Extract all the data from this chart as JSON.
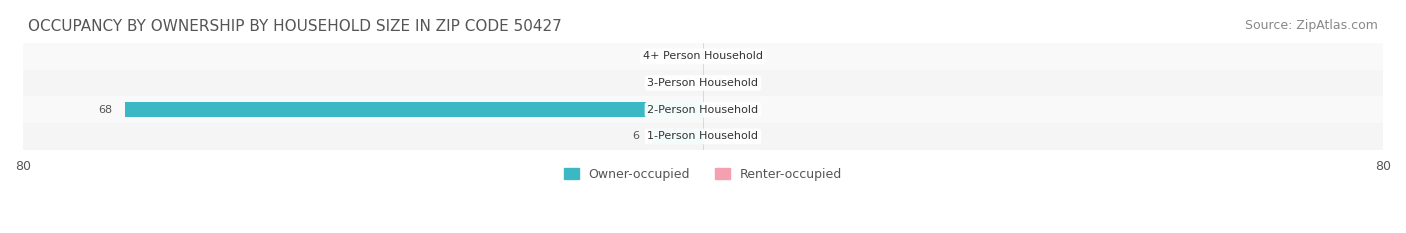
{
  "title": "OCCUPANCY BY OWNERSHIP BY HOUSEHOLD SIZE IN ZIP CODE 50427",
  "source": "Source: ZipAtlas.com",
  "categories": [
    "1-Person Household",
    "2-Person Household",
    "3-Person Household",
    "4+ Person Household"
  ],
  "owner_values": [
    6,
    68,
    0,
    0
  ],
  "renter_values": [
    0,
    0,
    0,
    0
  ],
  "owner_color": "#3BB8C3",
  "renter_color": "#F4A0B0",
  "bar_bg_color": "#EDEDEE",
  "label_bg_color": "#FFFFFF",
  "xlim": [
    -80,
    80
  ],
  "title_fontsize": 11,
  "source_fontsize": 9,
  "tick_fontsize": 9,
  "label_fontsize": 8,
  "legend_fontsize": 9,
  "bar_height": 0.55,
  "fig_bg_color": "#FFFFFF",
  "axis_bg_color": "#FFFFFF",
  "stripe_color": "#F5F5F5"
}
